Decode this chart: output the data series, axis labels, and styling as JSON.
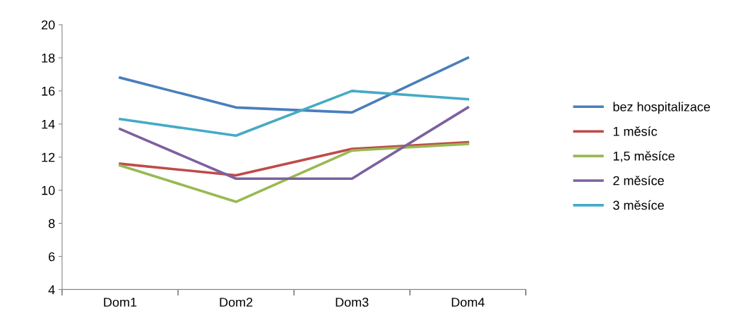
{
  "chart_data": {
    "type": "line",
    "categories": [
      "Dom1",
      "Dom2",
      "Dom3",
      "Dom4"
    ],
    "series": [
      {
        "name": "bez hospitalizace",
        "color": "#4a7ebb",
        "values": [
          16.8,
          15.0,
          14.7,
          18.0
        ]
      },
      {
        "name": "1 měsíc",
        "color": "#be4b48",
        "values": [
          11.6,
          10.9,
          12.5,
          12.9
        ]
      },
      {
        "name": "1,5 měsíce",
        "color": "#98b954",
        "values": [
          11.5,
          9.3,
          12.4,
          12.8
        ]
      },
      {
        "name": "2 měsíce",
        "color": "#7d60a0",
        "values": [
          13.7,
          10.7,
          10.7,
          15.0
        ]
      },
      {
        "name": "3 měsíce",
        "color": "#46aac5",
        "values": [
          14.3,
          13.3,
          16.0,
          15.5
        ]
      }
    ],
    "ylim": [
      4,
      20
    ],
    "yticks": [
      4,
      6,
      8,
      10,
      12,
      14,
      16,
      18,
      20
    ],
    "grid": false,
    "legend": "right",
    "marker": "none",
    "line_style": "solid"
  }
}
